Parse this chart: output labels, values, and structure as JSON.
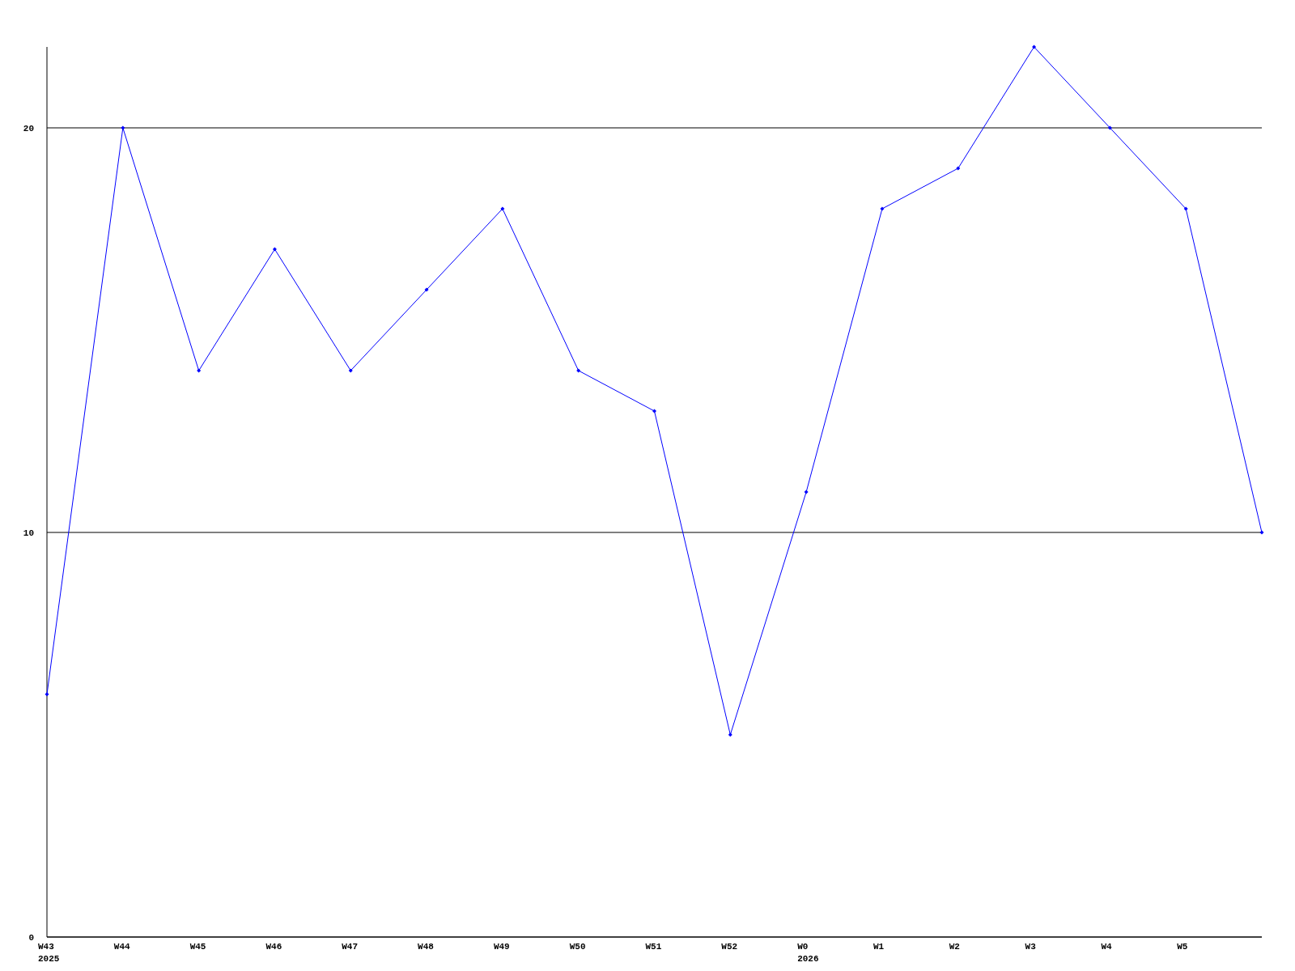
{
  "chart_data": {
    "type": "line",
    "categories": [
      "W43\n2025",
      "W44",
      "W45",
      "W46",
      "W47",
      "W48",
      "W49",
      "W50",
      "W51",
      "W52",
      "W0\n2026",
      "W1",
      "W2",
      "W3",
      "W4",
      "W5",
      null
    ],
    "series": [
      {
        "color": "#0000ff",
        "values": [
          6,
          20,
          14,
          17,
          14,
          16,
          18,
          14,
          13,
          5,
          11,
          18,
          19,
          22,
          20,
          18,
          10
        ]
      }
    ],
    "ylim": [
      0,
      22
    ],
    "yticks": [
      0,
      10,
      20
    ],
    "grid": "y",
    "marker": "diamond",
    "line_style": "solid"
  }
}
